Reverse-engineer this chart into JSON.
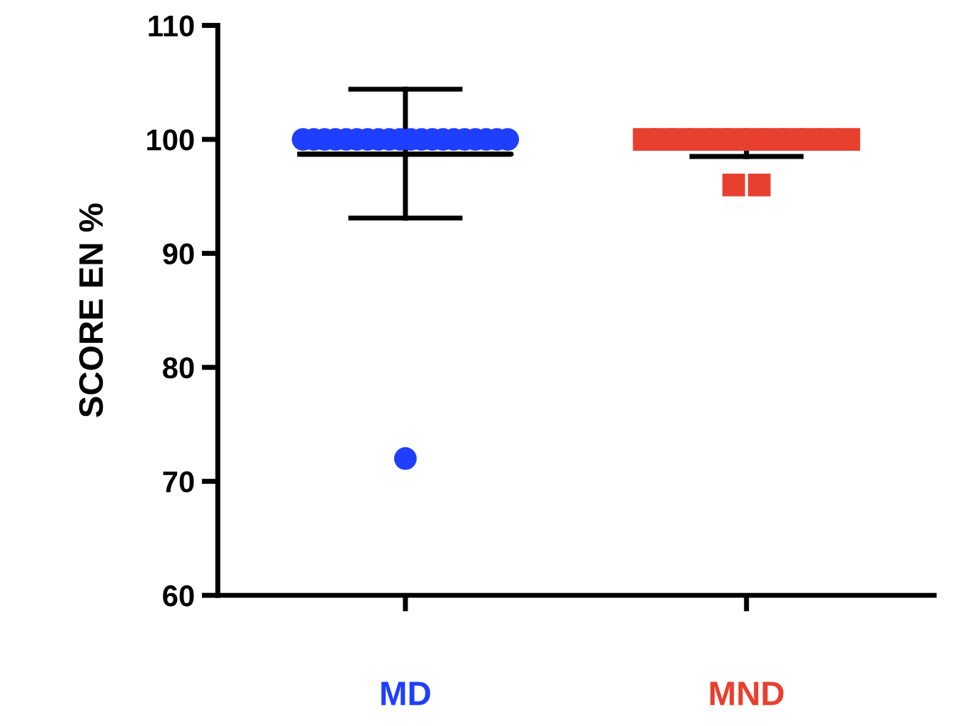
{
  "chart_data": {
    "type": "scatter",
    "ylabel": "SCORE EN %",
    "categories": [
      "MD",
      "MND"
    ],
    "ylim": [
      60,
      110
    ],
    "yticks": [
      60,
      70,
      80,
      90,
      100,
      110
    ],
    "grid": false,
    "legend": false,
    "series": [
      {
        "marker": "circle",
        "color": "#1f3fff",
        "x": [
          "MD",
          "MD",
          "MD",
          "MD",
          "MD",
          "MD",
          "MD",
          "MD",
          "MD",
          "MD",
          "MD",
          "MD",
          "MD",
          "MD",
          "MD",
          "MD",
          "MD",
          "MD",
          "MD",
          "MD",
          "MD"
        ],
        "values": [
          100,
          100,
          100,
          100,
          100,
          100,
          100,
          100,
          100,
          100,
          100,
          100,
          100,
          100,
          100,
          100,
          100,
          100,
          100,
          100,
          72
        ]
      },
      {
        "marker": "square",
        "color": "#e8402f",
        "x": [
          "MND",
          "MND",
          "MND",
          "MND",
          "MND",
          "MND",
          "MND",
          "MND",
          "MND",
          "MND",
          "MND",
          "MND",
          "MND",
          "MND"
        ],
        "values": [
          100,
          100,
          100,
          100,
          100,
          100,
          100,
          100,
          100,
          100,
          100,
          100,
          96,
          96
        ]
      },
      {
        "type": "box",
        "color": "#000000",
        "boxes": [
          {
            "low": 93.1,
            "q1": 98.7,
            "median": 98.7,
            "q3": 98.7,
            "high": 104.4
          },
          {
            "low": 98.5,
            "q1": 99.6,
            "median": 99.6,
            "q3": 99.6,
            "high": 100.7
          }
        ]
      }
    ]
  }
}
